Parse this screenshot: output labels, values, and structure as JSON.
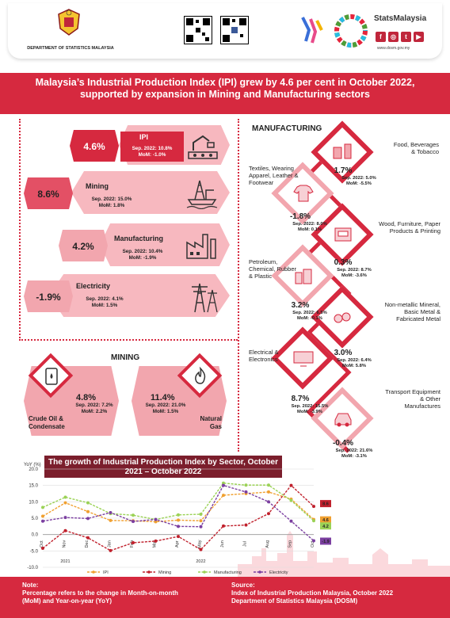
{
  "header": {
    "dept_name": "DEPARTMENT OF STATISTICS MALAYSIA",
    "brand": "StatsMalaysia",
    "url": "www.dosm.gov.my",
    "social": [
      "f",
      "◎",
      "t",
      "▶"
    ]
  },
  "title": "Malaysia’s Industrial Production Index (IPI) grew by 4.6 per cent in October 2022, supported by expansion in Mining and Manufacturing sectors",
  "kpis": [
    {
      "name": "IPI",
      "value": "4.6%",
      "sep": "Sep. 2022: 10.8%",
      "mom": "MoM: -1.0%"
    },
    {
      "name": "Mining",
      "value": "8.6%",
      "sep": "Sep. 2022: 15.0%",
      "mom": "MoM: 1.8%"
    },
    {
      "name": "Manufacturing",
      "value": "4.2%",
      "sep": "Sep. 2022: 10.4%",
      "mom": "MoM: -1.9%"
    },
    {
      "name": "Electricity",
      "value": "-1.9%",
      "sep": "Sep. 2022: 4.1%",
      "mom": "MoM: 1.5%"
    }
  ],
  "manufacturing": {
    "title": "MANUFACTURING",
    "items": [
      {
        "label": "Food, Beverages & Tobacco",
        "value": "1.7%",
        "sep": "Sep. 2022: 5.0%",
        "mom": "MoM: -5.5%"
      },
      {
        "label": "Textiles, Wearing Apparel, Leather & Footwear",
        "value": "-1.8%",
        "sep": "Sep. 2022: 8.0%",
        "mom": "MoM: 0.1%"
      },
      {
        "label": "Wood, Furniture, Paper Products & Printing",
        "value": "0.3%",
        "sep": "Sep. 2022: 8.7%",
        "mom": "MoM: -3.6%"
      },
      {
        "label": "Petroleum, Chemical, Rubber & Plastic",
        "value": "3.2%",
        "sep": "Sep. 2022: 6.5%",
        "mom": "MoM: -0.1%"
      },
      {
        "label": "Non-metallic Mineral, Basic Metal & Fabricated Metal",
        "value": "3.0%",
        "sep": "Sep. 2022: 6.4%",
        "mom": "MoM: 5.8%"
      },
      {
        "label": "Electrical & Electronics",
        "value": "8.7%",
        "sep": "Sep. 2022: 15.5%",
        "mom": "MoM: -3.9%"
      },
      {
        "label": "Transport Equipment & Other Manufactures",
        "value": "-0.4%",
        "sep": "Sep. 2022: 21.6%",
        "mom": "MoM: -3.1%"
      }
    ]
  },
  "mining": {
    "title": "MINING",
    "items": [
      {
        "label": "Crude Oil & Condensate",
        "value": "4.8%",
        "sep": "Sep. 2022: 7.2%",
        "mom": "MoM: 2.2%"
      },
      {
        "label": "Natural Gas",
        "value": "11.4%",
        "sep": "Sep. 2022: 21.0%",
        "mom": "MoM: 1.5%"
      }
    ]
  },
  "chart_data": {
    "type": "line",
    "title": "The growth of Industrial Production Index by Sector, October 2021 – October 2022",
    "ylabel": "YoY (%)",
    "ylim": [
      -10,
      20
    ],
    "yticks": [
      "20.0",
      "15.0",
      "10.0",
      "5.0",
      "0.0",
      "-5.0",
      "-10.0"
    ],
    "categories": [
      "Oct",
      "Nov",
      "Dec",
      "Jan",
      "Feb",
      "Mar",
      "Apr",
      "May",
      "Jun",
      "Jul",
      "Aug",
      "Sep",
      "Oct"
    ],
    "years": [
      "2021",
      "2022"
    ],
    "series": [
      {
        "name": "IPI",
        "color": "#f0a030",
        "values": [
          5.6,
          9.7,
          7.0,
          4.3,
          4.2,
          3.9,
          4.4,
          4.2,
          12.0,
          12.5,
          13.0,
          10.8,
          4.6
        ]
      },
      {
        "name": "Mining",
        "color": "#c0202c",
        "values": [
          -4.2,
          1.2,
          -1.0,
          -4.9,
          -2.5,
          -2.0,
          -0.6,
          -4.6,
          2.6,
          2.9,
          6.4,
          15.0,
          8.6
        ]
      },
      {
        "name": "Manufacturing",
        "color": "#9bd256",
        "values": [
          8.3,
          11.4,
          9.7,
          6.4,
          5.9,
          4.6,
          6.0,
          6.2,
          15.7,
          15.1,
          15.1,
          10.4,
          4.2
        ]
      },
      {
        "name": "Electricity",
        "color": "#7b3fa0",
        "values": [
          4.1,
          5.2,
          4.9,
          6.7,
          4.0,
          4.6,
          2.5,
          2.4,
          15.0,
          13.0,
          10.0,
          4.1,
          -1.9
        ]
      }
    ],
    "end_labels": [
      "8.6",
      "4.6",
      "4.2",
      "-1.9"
    ]
  },
  "footer": {
    "note_title": "Note:",
    "note": "Percentage refers to the change in Month-on-month (MoM) and Year-on-year (YoY)",
    "source_title": "Source:",
    "source1": "Index of Industrial Production Malaysia, October 2022",
    "source2": "Department of Statistics Malaysia (DOSM)"
  }
}
